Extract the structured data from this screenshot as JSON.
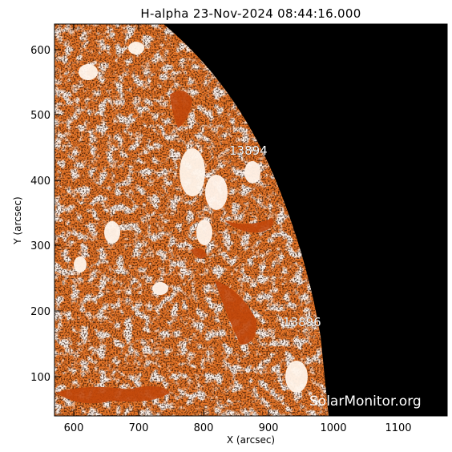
{
  "title": "H-alpha 23-Nov-2024 08:44:16.000",
  "xlabel": "X (arcsec)",
  "ylabel": "Y (arcsec)",
  "x_ticks": [
    "600",
    "700",
    "800",
    "900",
    "1000",
    "1100"
  ],
  "y_ticks": [
    "100",
    "200",
    "300",
    "400",
    "500",
    "600"
  ],
  "active_regions": [
    {
      "label": "13894",
      "x_arcsec": 875,
      "y_arcsec": 441
    },
    {
      "label": "13896",
      "x_arcsec": 935,
      "y_arcsec": 181
    }
  ],
  "watermark": "SolarMonitor.org",
  "colors": {
    "disk_dark": "#b23a00",
    "disk_mid": "#e8782a",
    "disk_bright": "#ffd9b0",
    "space": "#000000",
    "plage": "#fff4ea"
  }
}
